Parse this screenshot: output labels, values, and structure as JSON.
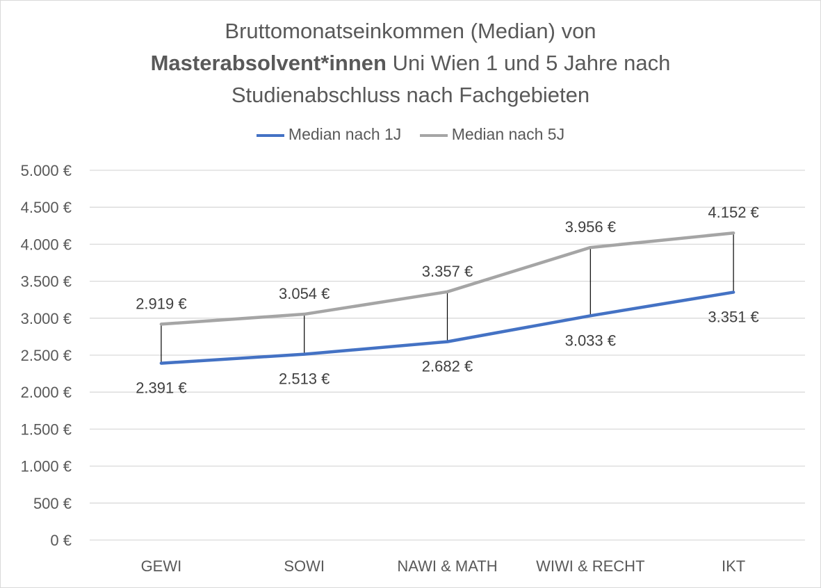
{
  "title": {
    "line1": "Bruttomonatseinkommen (Median) von",
    "line2_bold": "Masterabsolvent*innen",
    "line2_rest": " Uni Wien 1 und 5 Jahre nach",
    "line3": "Studienabschluss nach Fachgebieten"
  },
  "colors": {
    "series1": "#4472c4",
    "series2": "#a5a5a5",
    "grid": "#d9d9d9",
    "text": "#595959",
    "connector": "#000000"
  },
  "chart_data": {
    "type": "line",
    "categories": [
      "GEWI",
      "SOWI",
      "NAWI & MATH",
      "WIWI & RECHT",
      "IKT"
    ],
    "series": [
      {
        "name": "Median nach 1J",
        "values": [
          2391,
          2513,
          2682,
          3033,
          3351
        ],
        "labels": [
          "2.391 €",
          "2.513 €",
          "2.682 €",
          "3.033 €",
          "3.351 €"
        ]
      },
      {
        "name": "Median nach 5J",
        "values": [
          2919,
          3054,
          3357,
          3956,
          4152
        ],
        "labels": [
          "2.919 €",
          "3.054 €",
          "3.357 €",
          "3.956 €",
          "4.152 €"
        ]
      }
    ],
    "ylim": [
      0,
      5000
    ],
    "yticks": [
      0,
      500,
      1000,
      1500,
      2000,
      2500,
      3000,
      3500,
      4000,
      4500,
      5000
    ],
    "ytick_labels": [
      "0 €",
      "500 €",
      "1.000 €",
      "1.500 €",
      "2.000 €",
      "2.500 €",
      "3.000 €",
      "3.500 €",
      "4.000 €",
      "4.500 €",
      "5.000 €"
    ],
    "high_low_lines": true,
    "grid": true,
    "legend_position": "top"
  }
}
